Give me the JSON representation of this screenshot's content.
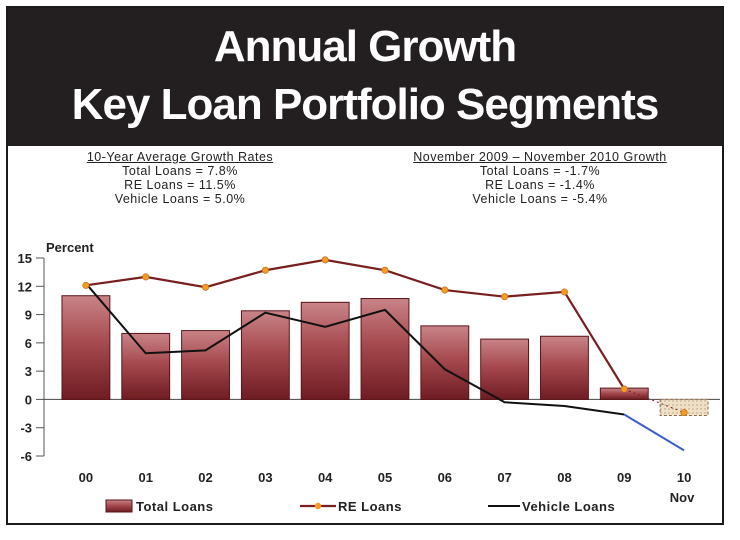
{
  "title_line1": "Annual Growth",
  "title_line2": "Key Loan Portfolio Segments",
  "avg_stats": {
    "heading": "10-Year Average Growth Rates",
    "lines": [
      "Total Loans = 7.8%",
      "RE Loans = 11.5%",
      "Vehicle Loans = 5.0%"
    ]
  },
  "recent_stats": {
    "heading": "November 2009 – November 2010 Growth",
    "lines": [
      "Total Loans = -1.7%",
      "RE Loans = -1.4%",
      "Vehicle Loans = -5.4%"
    ]
  },
  "chart_data": {
    "type": "bar",
    "ylabel": "Percent",
    "ylim": [
      -6,
      15
    ],
    "yticks": [
      15,
      12,
      9,
      6,
      3,
      0,
      -3,
      -6
    ],
    "categories": [
      "00",
      "01",
      "02",
      "03",
      "04",
      "05",
      "06",
      "07",
      "08",
      "09",
      "10"
    ],
    "category_sublabels": {
      "10": "Nov"
    },
    "series": [
      {
        "name": "Total Loans",
        "kind": "bar",
        "color": "#8b2a2e",
        "values": [
          11.0,
          7.0,
          7.3,
          9.4,
          10.3,
          10.7,
          7.8,
          6.4,
          6.7,
          1.2,
          -1.7
        ]
      },
      {
        "name": "RE Loans",
        "kind": "line",
        "color": "#7a1f1f",
        "marker_color": "#f39c1f",
        "values": [
          12.1,
          13.0,
          11.9,
          13.7,
          14.8,
          13.7,
          11.6,
          10.9,
          11.4,
          1.1,
          -1.4
        ]
      },
      {
        "name": "Vehicle Loans",
        "kind": "line",
        "color": "#111111",
        "projection_color": "#3a5fc8",
        "values": [
          12.3,
          4.9,
          5.2,
          9.2,
          7.7,
          9.5,
          3.2,
          -0.3,
          -0.7,
          -1.6,
          -5.4
        ]
      }
    ],
    "legend": [
      "Total Loans",
      "RE Loans",
      "Vehicle Loans"
    ],
    "legend_position": "bottom"
  }
}
